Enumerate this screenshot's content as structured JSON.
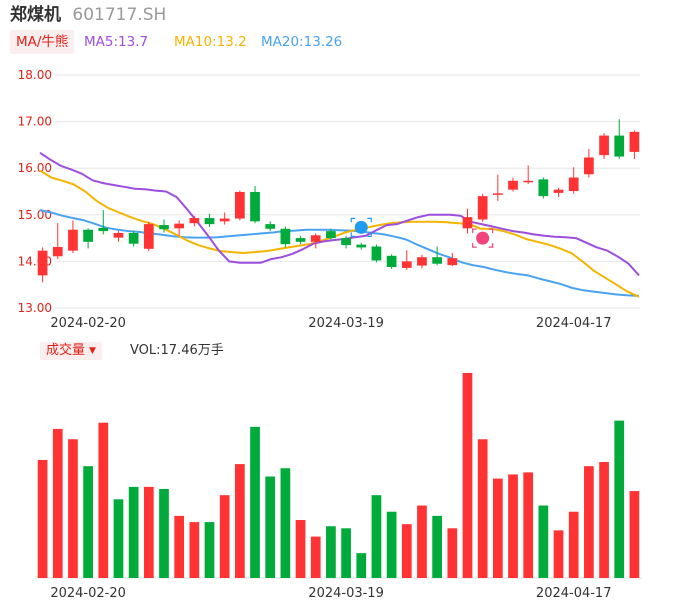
{
  "stock": {
    "name": "郑煤机",
    "code": "601717.SH"
  },
  "ma": {
    "button": "MA/牛熊",
    "ma5": "MA5:13.7",
    "ma10": "MA10:13.2",
    "ma20": "MA20:13.26"
  },
  "volume": {
    "button": "成交量",
    "label": "VOL:17.46万手"
  },
  "colors": {
    "up": "#ff3333",
    "down": "#00aa3b",
    "ma5": "#9d4edd",
    "ma10": "#f4b400",
    "ma20": "#4aa3f0",
    "grid": "#e6e6e6",
    "axis_text": "#e2231a"
  },
  "chart_data": {
    "type": "candlestick",
    "y_ticks": [
      "18.00",
      "17.00",
      "16.00",
      "15.00",
      "14.00",
      "13.00"
    ],
    "ylim": [
      13.0,
      18.0
    ],
    "x_ticks": [
      {
        "index": 3,
        "label": "2024-02-20"
      },
      {
        "index": 20,
        "label": "2024-03-19"
      },
      {
        "index": 35,
        "label": "2024-04-17"
      }
    ],
    "badges": [
      {
        "index": 21,
        "price": 14.73,
        "type": "bear"
      },
      {
        "index": 29,
        "price": 14.5,
        "type": "bull"
      }
    ],
    "candles": [
      {
        "o": 14.23,
        "c": 13.7,
        "h": 14.3,
        "l": 13.55,
        "dir": "up"
      },
      {
        "o": 14.31,
        "c": 14.11,
        "h": 14.82,
        "l": 14.05,
        "dir": "up"
      },
      {
        "o": 14.68,
        "c": 14.23,
        "h": 14.88,
        "l": 14.18,
        "dir": "up"
      },
      {
        "o": 14.42,
        "c": 14.68,
        "h": 14.71,
        "l": 14.28,
        "dir": "down"
      },
      {
        "o": 14.72,
        "c": 14.65,
        "h": 15.1,
        "l": 14.58,
        "dir": "down"
      },
      {
        "o": 14.61,
        "c": 14.51,
        "h": 14.65,
        "l": 14.42,
        "dir": "up"
      },
      {
        "o": 14.38,
        "c": 14.61,
        "h": 14.66,
        "l": 14.32,
        "dir": "down"
      },
      {
        "o": 14.8,
        "c": 14.27,
        "h": 14.85,
        "l": 14.22,
        "dir": "up"
      },
      {
        "o": 14.69,
        "c": 14.78,
        "h": 14.9,
        "l": 14.62,
        "dir": "down"
      },
      {
        "o": 14.81,
        "c": 14.71,
        "h": 14.88,
        "l": 14.55,
        "dir": "up"
      },
      {
        "o": 14.93,
        "c": 14.82,
        "h": 14.98,
        "l": 14.75,
        "dir": "up"
      },
      {
        "o": 14.8,
        "c": 14.93,
        "h": 15.02,
        "l": 14.74,
        "dir": "down"
      },
      {
        "o": 14.92,
        "c": 14.86,
        "h": 15.05,
        "l": 14.79,
        "dir": "up"
      },
      {
        "o": 15.49,
        "c": 14.92,
        "h": 15.52,
        "l": 14.88,
        "dir": "up"
      },
      {
        "o": 14.86,
        "c": 15.49,
        "h": 15.62,
        "l": 14.82,
        "dir": "down"
      },
      {
        "o": 14.7,
        "c": 14.8,
        "h": 14.86,
        "l": 14.65,
        "dir": "down"
      },
      {
        "o": 14.37,
        "c": 14.7,
        "h": 14.75,
        "l": 14.3,
        "dir": "down"
      },
      {
        "o": 14.42,
        "c": 14.5,
        "h": 14.55,
        "l": 14.37,
        "dir": "down"
      },
      {
        "o": 14.56,
        "c": 14.42,
        "h": 14.6,
        "l": 14.28,
        "dir": "up"
      },
      {
        "o": 14.5,
        "c": 14.65,
        "h": 14.7,
        "l": 14.46,
        "dir": "down"
      },
      {
        "o": 14.35,
        "c": 14.5,
        "h": 14.55,
        "l": 14.28,
        "dir": "down"
      },
      {
        "o": 14.3,
        "c": 14.36,
        "h": 14.4,
        "l": 14.25,
        "dir": "down"
      },
      {
        "o": 14.02,
        "c": 14.32,
        "h": 14.36,
        "l": 13.98,
        "dir": "down"
      },
      {
        "o": 13.88,
        "c": 14.12,
        "h": 14.15,
        "l": 13.84,
        "dir": "down"
      },
      {
        "o": 14.0,
        "c": 13.86,
        "h": 14.24,
        "l": 13.82,
        "dir": "up"
      },
      {
        "o": 14.09,
        "c": 13.91,
        "h": 14.14,
        "l": 13.85,
        "dir": "up"
      },
      {
        "o": 13.95,
        "c": 14.09,
        "h": 14.32,
        "l": 13.92,
        "dir": "down"
      },
      {
        "o": 14.07,
        "c": 13.92,
        "h": 14.18,
        "l": 13.9,
        "dir": "up"
      },
      {
        "o": 14.95,
        "c": 14.71,
        "h": 15.13,
        "l": 14.6,
        "dir": "up"
      },
      {
        "o": 15.4,
        "c": 14.9,
        "h": 15.45,
        "l": 14.85,
        "dir": "up"
      },
      {
        "o": 15.46,
        "c": 15.44,
        "h": 15.86,
        "l": 15.3,
        "dir": "up"
      },
      {
        "o": 15.73,
        "c": 15.54,
        "h": 15.8,
        "l": 15.5,
        "dir": "up"
      },
      {
        "o": 15.73,
        "c": 15.72,
        "h": 16.06,
        "l": 15.66,
        "dir": "up"
      },
      {
        "o": 15.4,
        "c": 15.76,
        "h": 15.8,
        "l": 15.35,
        "dir": "down"
      },
      {
        "o": 15.54,
        "c": 15.47,
        "h": 15.58,
        "l": 15.38,
        "dir": "up"
      },
      {
        "o": 15.8,
        "c": 15.51,
        "h": 16.02,
        "l": 15.45,
        "dir": "up"
      },
      {
        "o": 16.23,
        "c": 15.87,
        "h": 16.41,
        "l": 15.8,
        "dir": "up"
      },
      {
        "o": 16.7,
        "c": 16.28,
        "h": 16.75,
        "l": 16.2,
        "dir": "up"
      },
      {
        "o": 16.25,
        "c": 16.7,
        "h": 17.05,
        "l": 16.2,
        "dir": "down"
      },
      {
        "o": 16.78,
        "c": 16.35,
        "h": 16.81,
        "l": 16.2,
        "dir": "up"
      }
    ],
    "volumes": [
      {
        "v": 57,
        "dir": "up"
      },
      {
        "v": 72,
        "dir": "up"
      },
      {
        "v": 67,
        "dir": "up"
      },
      {
        "v": 54,
        "dir": "down"
      },
      {
        "v": 75,
        "dir": "up"
      },
      {
        "v": 38,
        "dir": "down"
      },
      {
        "v": 44,
        "dir": "down"
      },
      {
        "v": 44,
        "dir": "up"
      },
      {
        "v": 43,
        "dir": "down"
      },
      {
        "v": 30,
        "dir": "up"
      },
      {
        "v": 27,
        "dir": "up"
      },
      {
        "v": 27,
        "dir": "down"
      },
      {
        "v": 40,
        "dir": "up"
      },
      {
        "v": 55,
        "dir": "up"
      },
      {
        "v": 73,
        "dir": "down"
      },
      {
        "v": 49,
        "dir": "down"
      },
      {
        "v": 53,
        "dir": "down"
      },
      {
        "v": 28,
        "dir": "up"
      },
      {
        "v": 20,
        "dir": "up"
      },
      {
        "v": 25,
        "dir": "down"
      },
      {
        "v": 24,
        "dir": "down"
      },
      {
        "v": 12,
        "dir": "down"
      },
      {
        "v": 40,
        "dir": "down"
      },
      {
        "v": 32,
        "dir": "down"
      },
      {
        "v": 26,
        "dir": "up"
      },
      {
        "v": 35,
        "dir": "up"
      },
      {
        "v": 30,
        "dir": "down"
      },
      {
        "v": 24,
        "dir": "up"
      },
      {
        "v": 99,
        "dir": "up"
      },
      {
        "v": 67,
        "dir": "up"
      },
      {
        "v": 48,
        "dir": "up"
      },
      {
        "v": 50,
        "dir": "up"
      },
      {
        "v": 51,
        "dir": "up"
      },
      {
        "v": 35,
        "dir": "down"
      },
      {
        "v": 23,
        "dir": "up"
      },
      {
        "v": 32,
        "dir": "up"
      },
      {
        "v": 54,
        "dir": "up"
      },
      {
        "v": 56,
        "dir": "up"
      },
      {
        "v": 76,
        "dir": "down"
      },
      {
        "v": 42,
        "dir": "up"
      }
    ],
    "vol_max": 99,
    "ma5": [
      16.33,
      16.18,
      16.05,
      15.97,
      15.88,
      15.74,
      15.68,
      15.64,
      15.6,
      15.56,
      15.55,
      15.52,
      15.5,
      15.38,
      15.12,
      14.84,
      14.55,
      14.24,
      14.0,
      13.97,
      13.97,
      13.97,
      14.05,
      14.09,
      14.16,
      14.26,
      14.38,
      14.43,
      14.46,
      14.48,
      14.52,
      14.55,
      14.67,
      14.78,
      14.8,
      14.88,
      14.95,
      15.0,
      15.0,
      15.0,
      14.98,
      14.85,
      14.8,
      14.75,
      14.7,
      14.65,
      14.62,
      14.58,
      14.55,
      14.53,
      14.52,
      14.5,
      14.4,
      14.3,
      14.23,
      14.1,
      13.95,
      13.7
    ],
    "ma10": [
      15.95,
      15.8,
      15.73,
      15.65,
      15.5,
      15.3,
      15.15,
      15.05,
      14.95,
      14.87,
      14.8,
      14.7,
      14.58,
      14.45,
      14.35,
      14.28,
      14.22,
      14.2,
      14.18,
      14.2,
      14.22,
      14.26,
      14.3,
      14.34,
      14.38,
      14.45,
      14.53,
      14.62,
      14.68,
      14.73,
      14.78,
      14.82,
      14.84,
      14.85,
      14.85,
      14.85,
      14.84,
      14.82,
      14.8,
      14.7,
      14.7,
      14.65,
      14.58,
      14.48,
      14.42,
      14.36,
      14.28,
      14.18,
      14.0,
      13.8,
      13.65,
      13.5,
      13.35,
      13.24
    ],
    "ma20": [
      15.1,
      15.05,
      14.98,
      14.93,
      14.88,
      14.8,
      14.72,
      14.68,
      14.65,
      14.63,
      14.6,
      14.57,
      14.54,
      14.52,
      14.51,
      14.51,
      14.52,
      14.54,
      14.56,
      14.58,
      14.6,
      14.62,
      14.65,
      14.66,
      14.68,
      14.68,
      14.68,
      14.67,
      14.66,
      14.64,
      14.61,
      14.58,
      14.53,
      14.47,
      14.36,
      14.26,
      14.16,
      14.08,
      13.98,
      13.92,
      13.88,
      13.82,
      13.77,
      13.73,
      13.7,
      13.63,
      13.57,
      13.51,
      13.43,
      13.38,
      13.35,
      13.32,
      13.29,
      13.27,
      13.26
    ]
  }
}
